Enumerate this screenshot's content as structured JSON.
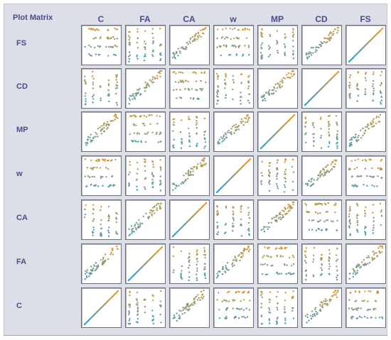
{
  "window": {
    "title": "Plot Matrix"
  },
  "variables": {
    "columns": [
      "C",
      "FA",
      "CA",
      "w",
      "MP",
      "CD",
      "FS"
    ],
    "rows": [
      "FS",
      "CD",
      "MP",
      "w",
      "CA",
      "FA",
      "C"
    ]
  },
  "colors": {
    "point_low": "#2a9fd6",
    "point_high": "#f09a1f",
    "cell_border": "#6e7078",
    "panel_background": "#dcdfe8",
    "label_color": "#4b4b8a"
  }
}
